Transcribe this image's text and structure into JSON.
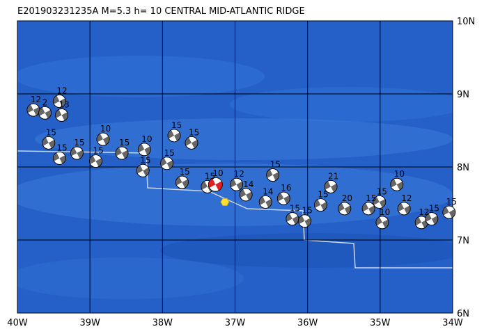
{
  "title": "E201903231235A M=5.3 h= 10 CENTRAL MID-ATLANTIC RIDGE",
  "map": {
    "lon_range": [
      -40,
      -34
    ],
    "lat_range": [
      6,
      10
    ],
    "lon_ticks": [
      {
        "value": -40,
        "label": "40W"
      },
      {
        "value": -39,
        "label": "39W"
      },
      {
        "value": -38,
        "label": "38W"
      },
      {
        "value": -37,
        "label": "37W"
      },
      {
        "value": -36,
        "label": "36W"
      },
      {
        "value": -35,
        "label": "35W"
      },
      {
        "value": -34,
        "label": "34W"
      }
    ],
    "lat_ticks": [
      {
        "value": 10,
        "label": "10N"
      },
      {
        "value": 9,
        "label": "9N"
      },
      {
        "value": 8,
        "label": "8N"
      },
      {
        "value": 7,
        "label": "7N"
      },
      {
        "value": 6,
        "label": "6N"
      }
    ],
    "events": [
      {
        "lon": -39.78,
        "lat": 8.78,
        "depth": 12
      },
      {
        "lon": -39.62,
        "lat": 8.74,
        "depth": 2
      },
      {
        "lon": -39.42,
        "lat": 8.9,
        "depth": 12
      },
      {
        "lon": -39.39,
        "lat": 8.71,
        "depth": 13
      },
      {
        "lon": -39.57,
        "lat": 8.33,
        "depth": 15
      },
      {
        "lon": -39.42,
        "lat": 8.12,
        "depth": 15
      },
      {
        "lon": -39.18,
        "lat": 8.19,
        "depth": 15
      },
      {
        "lon": -38.92,
        "lat": 8.08,
        "depth": 15
      },
      {
        "lon": -38.82,
        "lat": 8.38,
        "depth": 10
      },
      {
        "lon": -38.56,
        "lat": 8.19,
        "depth": 15
      },
      {
        "lon": -38.27,
        "lat": 7.95,
        "depth": 15
      },
      {
        "lon": -38.25,
        "lat": 8.24,
        "depth": 10
      },
      {
        "lon": -37.94,
        "lat": 8.05,
        "depth": 15
      },
      {
        "lon": -37.84,
        "lat": 8.43,
        "depth": 15
      },
      {
        "lon": -37.6,
        "lat": 8.33,
        "depth": 15
      },
      {
        "lon": -37.73,
        "lat": 7.79,
        "depth": 15
      },
      {
        "lon": -37.38,
        "lat": 7.73,
        "depth": 15
      },
      {
        "lon": -36.98,
        "lat": 7.76,
        "depth": 12
      },
      {
        "lon": -36.85,
        "lat": 7.62,
        "depth": 14
      },
      {
        "lon": -36.58,
        "lat": 7.52,
        "depth": 14
      },
      {
        "lon": -36.48,
        "lat": 7.89,
        "depth": 15
      },
      {
        "lon": -36.33,
        "lat": 7.57,
        "depth": 16
      },
      {
        "lon": -36.21,
        "lat": 7.29,
        "depth": 15
      },
      {
        "lon": -36.04,
        "lat": 7.26,
        "depth": 15
      },
      {
        "lon": -35.82,
        "lat": 7.48,
        "depth": 15
      },
      {
        "lon": -35.68,
        "lat": 7.73,
        "depth": 21
      },
      {
        "lon": -35.49,
        "lat": 7.43,
        "depth": 20
      },
      {
        "lon": -35.16,
        "lat": 7.43,
        "depth": 15
      },
      {
        "lon": -35.01,
        "lat": 7.52,
        "depth": 15
      },
      {
        "lon": -34.77,
        "lat": 7.76,
        "depth": 10
      },
      {
        "lon": -34.67,
        "lat": 7.43,
        "depth": 12
      },
      {
        "lon": -34.97,
        "lat": 7.24,
        "depth": 10
      },
      {
        "lon": -34.43,
        "lat": 7.24,
        "depth": 12
      },
      {
        "lon": -34.29,
        "lat": 7.29,
        "depth": 15
      },
      {
        "lon": -34.05,
        "lat": 7.38,
        "depth": 15
      }
    ],
    "main_event": {
      "lon": -37.27,
      "lat": 7.76,
      "depth": 10
    },
    "epicenter": {
      "lon": -37.14,
      "lat": 7.52
    }
  }
}
